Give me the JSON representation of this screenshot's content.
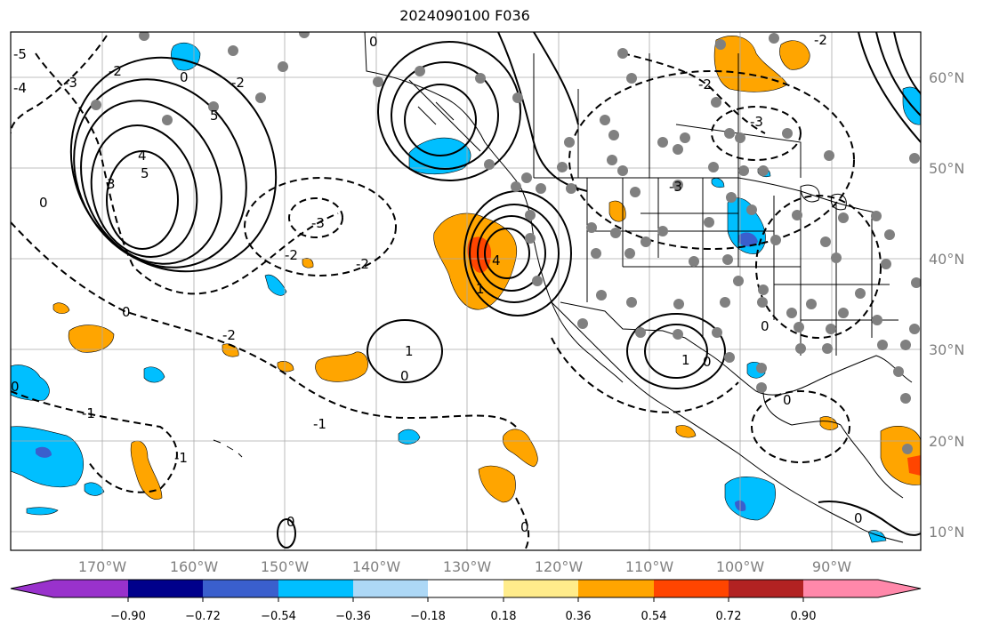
{
  "title": "2024090100 F036",
  "longitude_labels": [
    "170°W",
    "160°W",
    "150°W",
    "140°W",
    "130°W",
    "120°W",
    "110°W",
    "100°W",
    "90°W"
  ],
  "latitude_labels": [
    "60°N",
    "50°N",
    "40°N",
    "30°N",
    "20°N",
    "10°N"
  ],
  "colorbar": {
    "tick_labels": [
      "−0.90",
      "−0.72",
      "−0.54",
      "−0.36",
      "−0.18",
      "0.18",
      "0.36",
      "0.54",
      "0.72",
      "0.90"
    ],
    "colors": [
      "#9932cc",
      "#00008b",
      "#3a5fcd",
      "#00bfff",
      "#add8f6",
      "#ffffff",
      "#ffec8b",
      "#ffa500",
      "#ff4500",
      "#b22222",
      "#ff88aa"
    ]
  },
  "contour_labels": [
    "5",
    "4",
    "3",
    "2",
    "1",
    "0",
    "-1",
    "-2",
    "-3",
    "-4",
    "-5"
  ],
  "colors": {
    "positive_fill": "#ffa500",
    "strong_positive_fill": "#ff4500",
    "negative_fill": "#00bfff",
    "strong_negative_fill": "#3a5fcd",
    "station_dots": "#808080",
    "gridlines": "#aaaaaa"
  }
}
